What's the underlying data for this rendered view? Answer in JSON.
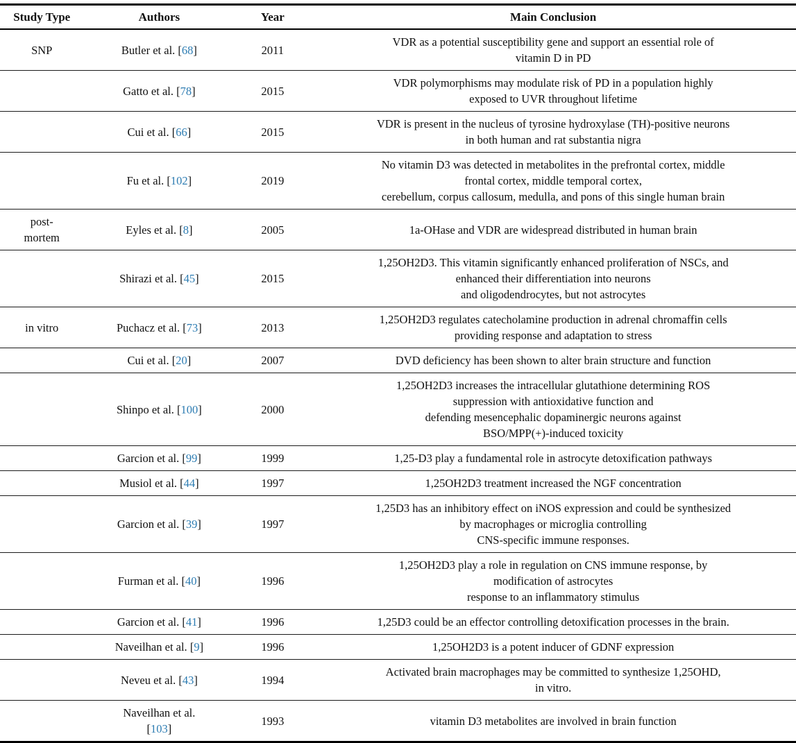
{
  "table": {
    "citation_color": "#2d7cb2",
    "columns": [
      "Study Type",
      "Authors",
      "Year",
      "Main Conclusion"
    ],
    "rows": [
      {
        "study_type_lines": [
          "SNP"
        ],
        "authors": "Butler et al.",
        "citation": "68",
        "year": "2011",
        "conclusion_lines": [
          "VDR as a potential susceptibility gene and support an essential role of",
          "vitamin D in PD"
        ]
      },
      {
        "study_type_lines": [],
        "authors": "Gatto et al.",
        "citation": "78",
        "year": "2015",
        "conclusion_lines": [
          "VDR polymorphisms may modulate risk of PD in a population highly",
          "exposed to UVR throughout lifetime"
        ]
      },
      {
        "study_type_lines": [],
        "authors": "Cui et al.",
        "citation": "66",
        "year": "2015",
        "conclusion_lines": [
          "VDR is present in the nucleus of tyrosine hydroxylase (TH)-positive neurons",
          "in both human and rat substantia nigra"
        ]
      },
      {
        "study_type_lines": [],
        "authors": "Fu et al.",
        "citation": "102",
        "year": "2019",
        "conclusion_lines": [
          "No vitamin D3 was detected in metabolites in the prefrontal cortex, middle",
          "frontal cortex, middle temporal cortex,",
          "cerebellum, corpus callosum, medulla, and pons of this single human brain"
        ]
      },
      {
        "study_type_lines": [
          "post-",
          "mortem"
        ],
        "authors": "Eyles et al.",
        "citation": "8",
        "year": "2005",
        "conclusion_lines": [
          "1a-OHase and VDR are widespread distributed in human brain"
        ]
      },
      {
        "study_type_lines": [],
        "authors": "Shirazi et al.",
        "citation": "45",
        "year": "2015",
        "conclusion_lines": [
          "1,25OH2D3. This vitamin significantly enhanced proliferation of NSCs, and",
          "enhanced their differentiation into neurons",
          "and oligodendrocytes, but not astrocytes"
        ]
      },
      {
        "study_type_lines": [
          "in vitro"
        ],
        "authors": "Puchacz et al.",
        "citation": "73",
        "year": "2013",
        "conclusion_lines": [
          "1,25OH2D3 regulates catecholamine production in adrenal chromaffin cells",
          "providing response and adaptation to stress"
        ]
      },
      {
        "study_type_lines": [],
        "authors": "Cui et al.",
        "citation": "20",
        "year": "2007",
        "conclusion_lines": [
          "DVD deficiency has been shown to alter brain structure and function"
        ]
      },
      {
        "study_type_lines": [],
        "authors": "Shinpo et al.",
        "citation": "100",
        "year": "2000",
        "conclusion_lines": [
          "1,25OH2D3 increases the intracellular glutathione determining ROS",
          "suppression with antioxidative function and",
          "defending mesencephalic dopaminergic neurons against",
          "BSO/MPP(+)-induced toxicity"
        ]
      },
      {
        "study_type_lines": [],
        "authors": "Garcion et al.",
        "citation": "99",
        "year": "1999",
        "conclusion_lines": [
          "1,25-D3 play a fundamental role in astrocyte detoxification pathways"
        ]
      },
      {
        "study_type_lines": [],
        "authors": "Musiol et al.",
        "citation": "44",
        "year": "1997",
        "conclusion_lines": [
          "1,25OH2D3 treatment increased the NGF concentration"
        ]
      },
      {
        "study_type_lines": [],
        "authors": "Garcion et al.",
        "citation": "39",
        "year": "1997",
        "conclusion_lines": [
          "1,25D3 has an inhibitory effect on iNOS expression and could be synthesized",
          "by macrophages or microglia controlling",
          "CNS-specific immune responses."
        ]
      },
      {
        "study_type_lines": [],
        "authors": "Furman et al.",
        "citation": "40",
        "year": "1996",
        "conclusion_lines": [
          "1,25OH2D3 play a role in regulation on CNS immune response, by",
          "modification of astrocytes",
          "response to an inflammatory stimulus"
        ]
      },
      {
        "study_type_lines": [],
        "authors": "Garcion et al.",
        "citation": "41",
        "year": "1996",
        "conclusion_lines": [
          "1,25D3 could be an effector controlling detoxification processes in the brain."
        ]
      },
      {
        "study_type_lines": [],
        "authors": "Naveilhan et al.",
        "citation": "9",
        "year": "1996",
        "conclusion_lines": [
          "1,25OH2D3 is a potent inducer of GDNF expression"
        ]
      },
      {
        "study_type_lines": [],
        "authors": "Neveu et al.",
        "citation": "43",
        "year": "1994",
        "conclusion_lines": [
          "Activated brain macrophages may be committed to synthesize 1,25OHD,",
          "in vitro."
        ]
      },
      {
        "study_type_lines": [],
        "authors": "Naveilhan et al.",
        "citation": "103",
        "year": "1993",
        "authors_two_lines": true,
        "conclusion_lines": [
          "vitamin D3 metabolites are involved in brain function"
        ]
      }
    ]
  }
}
